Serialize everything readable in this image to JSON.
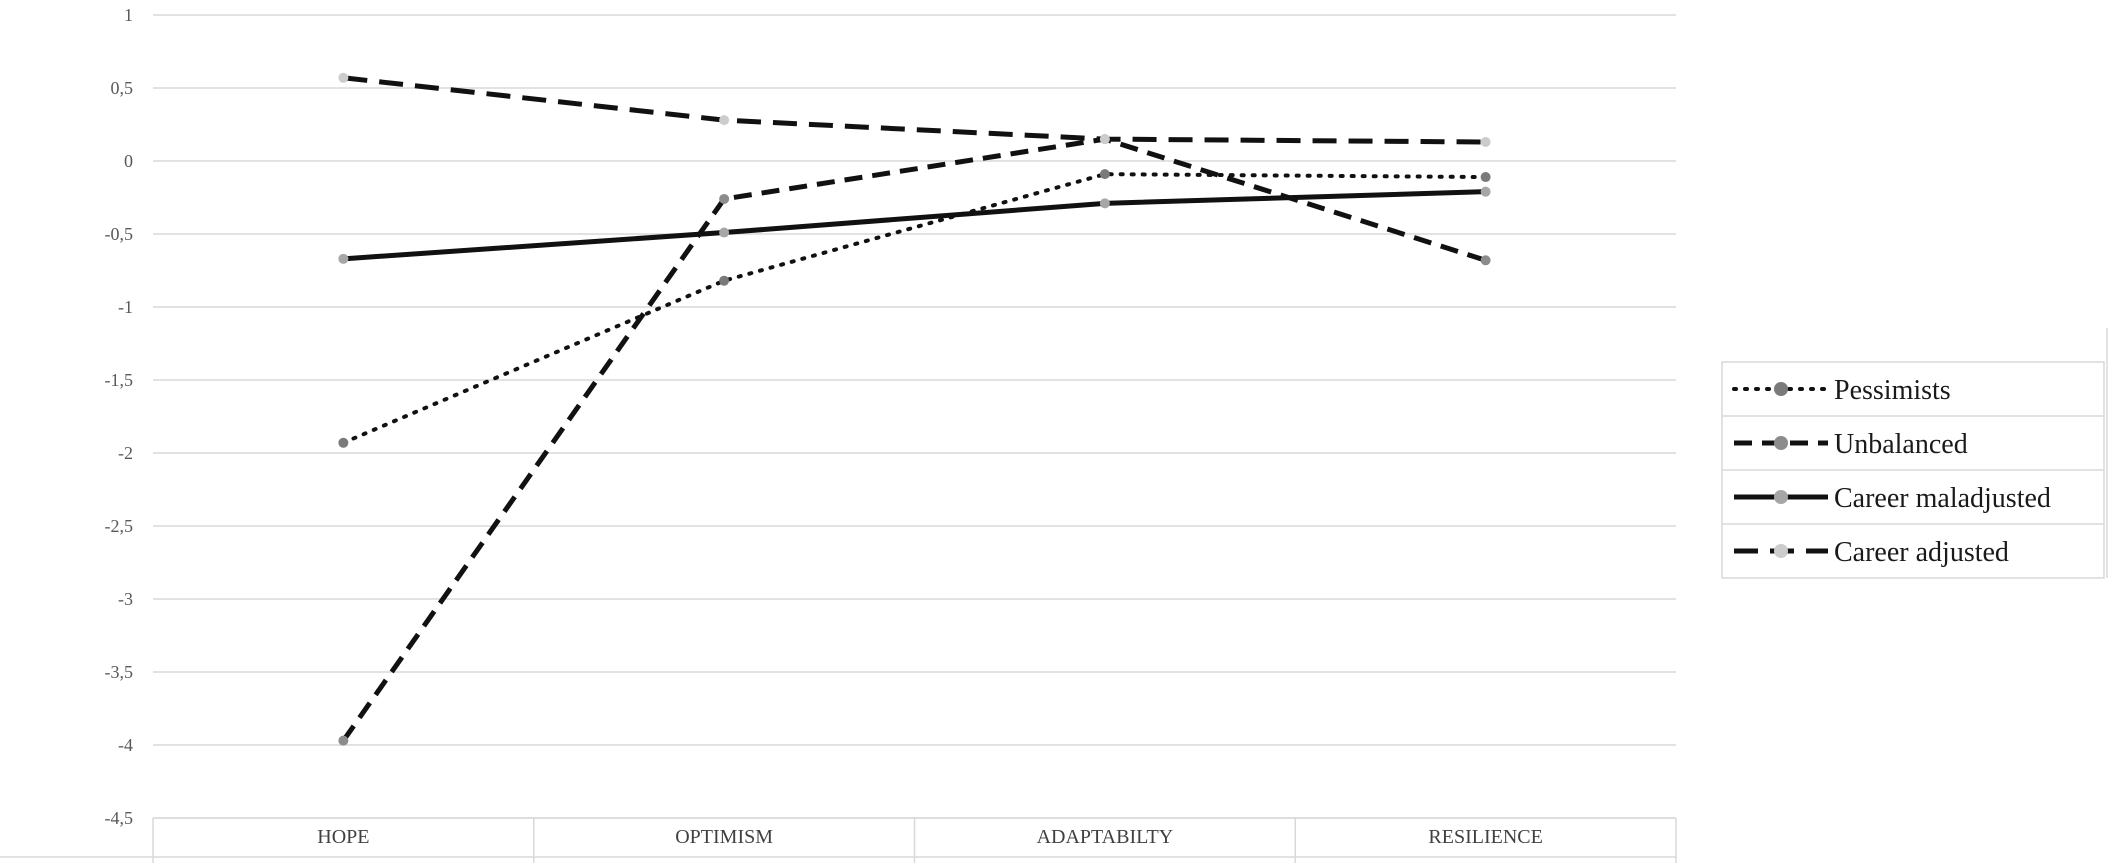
{
  "chart_data": {
    "type": "line",
    "categories": [
      "HOPE",
      "OPTIMISM",
      "ADAPTABILTY",
      "RESILIENCE"
    ],
    "ylim": [
      -4.5,
      1
    ],
    "yticks": [
      {
        "value": 1,
        "label": "1"
      },
      {
        "value": 0.5,
        "label": "0,5"
      },
      {
        "value": 0,
        "label": "0"
      },
      {
        "value": -0.5,
        "label": "-0,5"
      },
      {
        "value": -1,
        "label": "-1"
      },
      {
        "value": -1.5,
        "label": "-1,5"
      },
      {
        "value": -2,
        "label": "-2"
      },
      {
        "value": -2.5,
        "label": "-2,5"
      },
      {
        "value": -3,
        "label": "-3"
      },
      {
        "value": -3.5,
        "label": "-3,5"
      },
      {
        "value": -4,
        "label": "-4"
      },
      {
        "value": -4.5,
        "label": "-4,5"
      }
    ],
    "grid": true,
    "legend_position": "right",
    "series": [
      {
        "name": "Pessimists",
        "values": [
          -1.93,
          -0.82,
          -0.09,
          -0.11
        ],
        "dash": "dotted",
        "marker_color": "#7a7a7a"
      },
      {
        "name": "Unbalanced",
        "values": [
          -3.97,
          -0.26,
          0.15,
          -0.68
        ],
        "dash": "dashed",
        "marker_color": "#8c8c8c"
      },
      {
        "name": "Career maladjusted",
        "values": [
          -0.67,
          -0.49,
          -0.29,
          -0.21
        ],
        "dash": "solid",
        "marker_color": "#a6a6a6"
      },
      {
        "name": "Career adjusted",
        "values": [
          0.57,
          0.28,
          0.15,
          0.13
        ],
        "dash": "longdash",
        "marker_color": "#cccccc"
      }
    ],
    "line_color": "#111111",
    "grid_color": "#d9d9d9"
  }
}
